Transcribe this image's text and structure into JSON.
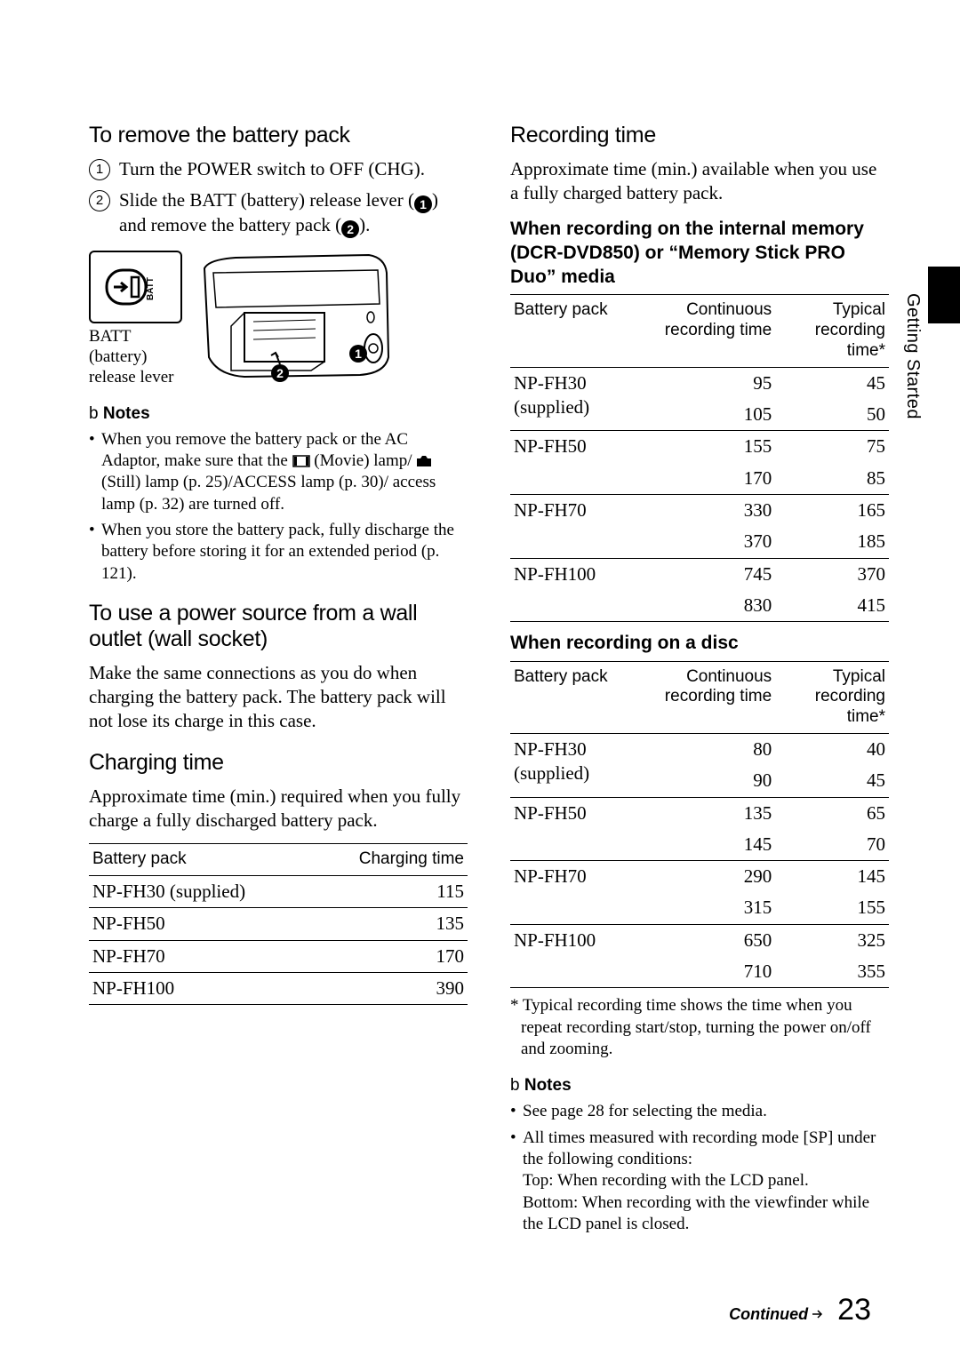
{
  "side_tab_label": "Getting Started",
  "left": {
    "h1": "To remove the battery pack",
    "step1": "Turn the POWER switch to OFF (CHG).",
    "step2_a": "Slide the BATT (battery) release lever (",
    "step2_b": ") and remove the battery pack (",
    "step2_c": ").",
    "marker1": "1",
    "marker2": "2",
    "diagram_caption": "BATT (battery) release lever",
    "notes_label_prefix": "b",
    "notes_label": "Notes",
    "note1_a": "When you remove the battery pack or the AC Adaptor, make sure that the ",
    "note1_b": " (Movie) lamp/ ",
    "note1_c": " (Still) lamp (p. 25)/ACCESS lamp (p. 30)/ access lamp (p. 32) are turned off.",
    "note2": "When you store the battery pack, fully discharge the battery before storing it for an extended period (p. 121).",
    "h2": "To use a power source from a wall outlet (wall socket)",
    "p2": "Make the same connections as you do when charging the battery pack. The battery pack will not lose its charge in this case.",
    "h3": "Charging time",
    "p3": "Approximate time (min.) required when you fully charge a fully discharged battery pack.",
    "charging_table": {
      "headers": [
        "Battery pack",
        "Charging time"
      ],
      "rows": [
        [
          "NP-FH30 (supplied)",
          "115"
        ],
        [
          "NP-FH50",
          "135"
        ],
        [
          "NP-FH70",
          "170"
        ],
        [
          "NP-FH100",
          "390"
        ]
      ]
    }
  },
  "right": {
    "h1": "Recording time",
    "p1": "Approximate time (min.) available when you use a fully charged battery pack.",
    "sub1": "When recording on the internal memory (DCR-DVD850) or “Memory Stick PRO Duo” media",
    "headers": [
      "Battery pack",
      "Continuous recording time",
      "Typical recording time*"
    ],
    "table1_rows": [
      [
        "NP-FH30 (supplied)",
        "95",
        "45"
      ],
      [
        "",
        "105",
        "50"
      ],
      [
        "NP-FH50",
        "155",
        "75"
      ],
      [
        "",
        "170",
        "85"
      ],
      [
        "NP-FH70",
        "330",
        "165"
      ],
      [
        "",
        "370",
        "185"
      ],
      [
        "NP-FH100",
        "745",
        "370"
      ],
      [
        "",
        "830",
        "415"
      ]
    ],
    "sub2": "When recording on a disc",
    "table2_rows": [
      [
        "NP-FH30 (supplied)",
        "80",
        "40"
      ],
      [
        "",
        "90",
        "45"
      ],
      [
        "NP-FH50",
        "135",
        "65"
      ],
      [
        "",
        "145",
        "70"
      ],
      [
        "NP-FH70",
        "290",
        "145"
      ],
      [
        "",
        "315",
        "155"
      ],
      [
        "NP-FH100",
        "650",
        "325"
      ],
      [
        "",
        "710",
        "355"
      ]
    ],
    "footnote": "* Typical recording time shows the time when you repeat recording start/stop, turning the power on/off and zooming.",
    "notes_label_prefix": "b",
    "notes_label": "Notes",
    "note1": "See page 28 for selecting the media.",
    "note2": "All times measured with recording mode [SP] under the following conditions:\nTop: When recording with the LCD panel.\nBottom: When recording with the viewfinder while the LCD panel is closed."
  },
  "footer": {
    "continued": "Continued",
    "page": "23"
  }
}
